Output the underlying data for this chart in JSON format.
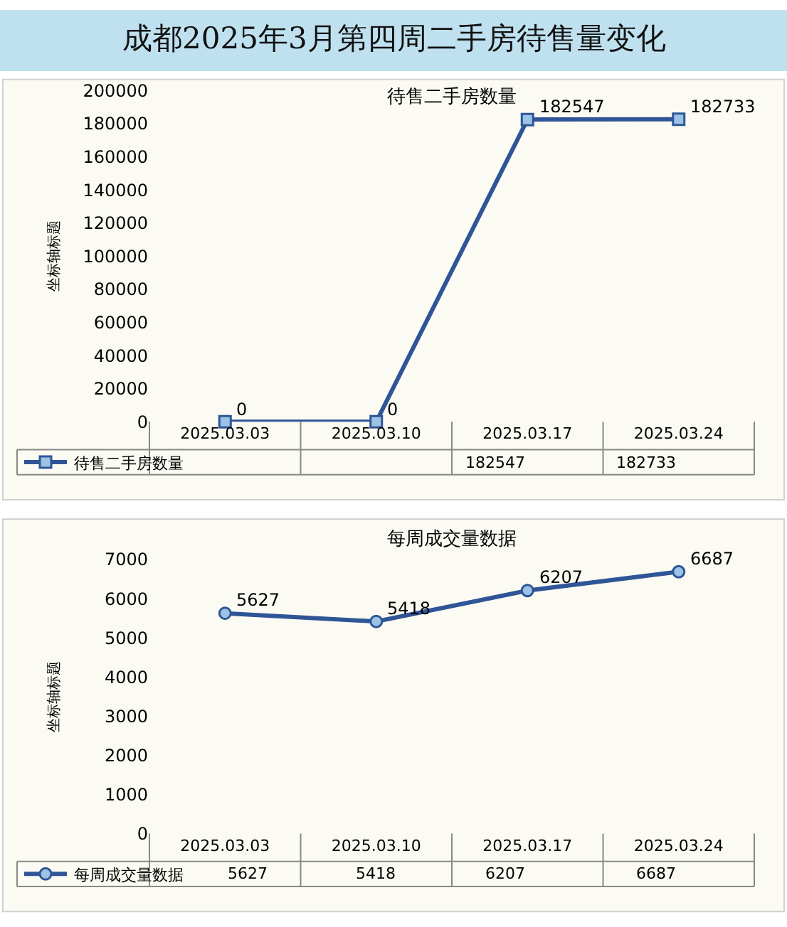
{
  "chart_data": [
    {
      "type": "line",
      "title": "成都2025年3月第四周二手房待售量变化",
      "subtitle": "待售二手房数量",
      "ylabel": "坐标轴标题",
      "categories": [
        "2025.03.03",
        "2025.03.10",
        "2025.03.17",
        "2025.03.24"
      ],
      "series": [
        {
          "name": "待售二手房数量",
          "color": "#2f5597",
          "values": [
            0,
            0,
            182547,
            182733
          ],
          "value_labels": [
            null,
            null,
            "182547",
            "182733"
          ]
        }
      ],
      "ylim": [
        0,
        200000
      ],
      "yticks": [
        0,
        20000,
        40000,
        60000,
        80000,
        100000,
        120000,
        140000,
        160000,
        180000,
        200000
      ],
      "annotations": [
        {
          "text": "0",
          "x": "2025.03.03",
          "y": 0
        },
        {
          "text": "0",
          "x": "2025.03.10",
          "y": 0
        },
        {
          "text": "182547",
          "x": "2025.03.17",
          "y": 182547
        },
        {
          "text": "182733",
          "x": "2025.03.24",
          "y": 182733
        }
      ],
      "marker": "square",
      "grid": false,
      "legend": "bottom left"
    },
    {
      "type": "line",
      "title": "每周成交量数据",
      "ylabel": "坐标轴标题",
      "categories": [
        "2025.03.03",
        "2025.03.10",
        "2025.03.17",
        "2025.03.24"
      ],
      "series": [
        {
          "name": "每周成交量数据",
          "color": "#2f5597",
          "values": [
            5627,
            5418,
            6207,
            6687
          ],
          "value_labels": [
            "5627",
            "5418",
            "6207",
            "6687"
          ]
        }
      ],
      "ylim": [
        0,
        7000
      ],
      "yticks": [
        0,
        1000,
        2000,
        3000,
        4000,
        5000,
        6000,
        7000
      ],
      "annotations": [
        {
          "text": "5627",
          "x": "2025.03.03",
          "y": 5627
        },
        {
          "text": "5418",
          "x": "2025.03.10",
          "y": 5418
        },
        {
          "text": "6207",
          "x": "2025.03.17",
          "y": 6207
        },
        {
          "text": "6687",
          "x": "2025.03.24",
          "y": 6687
        }
      ],
      "marker": "circle",
      "grid": false,
      "legend": "bottom left"
    }
  ]
}
